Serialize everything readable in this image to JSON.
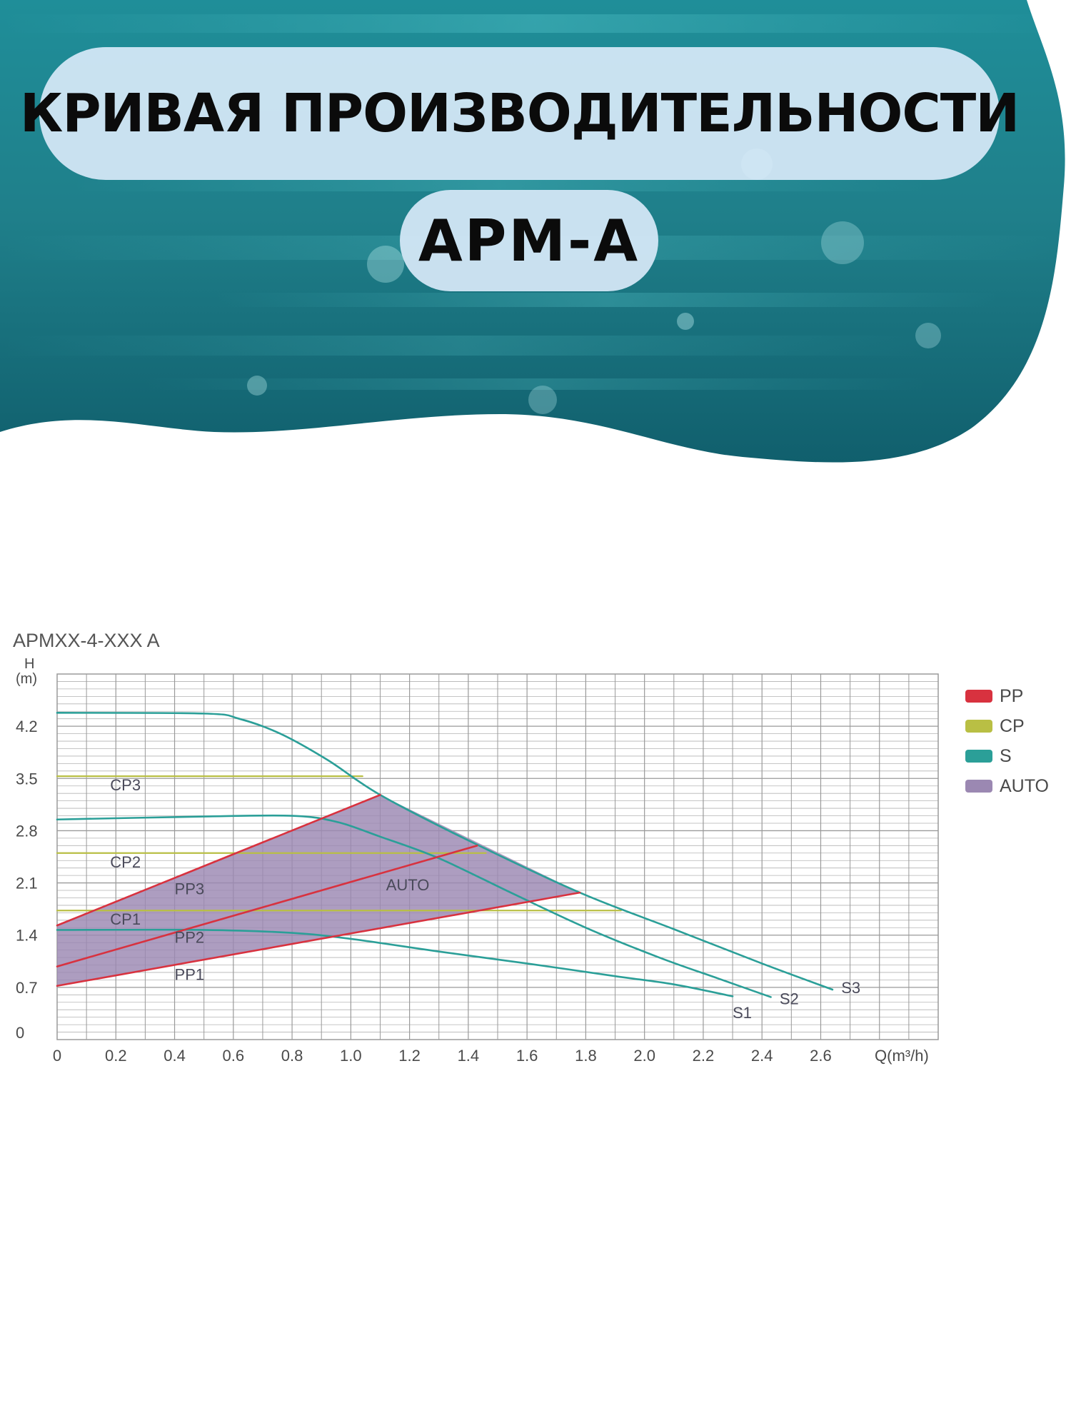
{
  "header": {
    "title": "КРИВАЯ ПРОИЗВОДИТЕЛЬНОСТИ",
    "model": "APM-A"
  },
  "colors": {
    "pp": "#d8323f",
    "cp": "#b9bf44",
    "s": "#2b9f98",
    "auto": "#9b88b2",
    "grid": "#9a9a9a"
  },
  "chart_data": {
    "type": "line",
    "title": "APMXX-4-XXX A",
    "ylabel_top": "H",
    "ylabel_unit": "(m)",
    "xlabel": "Q(m³/h)",
    "xlim": [
      0,
      3.0
    ],
    "ylim": [
      0,
      4.9
    ],
    "x_ticks": [
      "0",
      "0.2",
      "0.4",
      "0.6",
      "0.8",
      "1.0",
      "1.2",
      "1.4",
      "1.6",
      "1.8",
      "2.0",
      "2.2",
      "2.4",
      "2.6"
    ],
    "y_ticks": [
      "0",
      "0.7",
      "1.4",
      "2.1",
      "2.8",
      "3.5",
      "4.2"
    ],
    "legend": [
      {
        "label": "PP",
        "color": "#d8323f"
      },
      {
        "label": "CP",
        "color": "#b9bf44"
      },
      {
        "label": "S",
        "color": "#2b9f98"
      },
      {
        "label": "AUTO",
        "color": "#9b88b2"
      }
    ],
    "legend_position": "right",
    "auto_region": {
      "label": "AUTO",
      "points": [
        [
          0,
          1.53
        ],
        [
          1.1,
          3.28
        ],
        [
          1.78,
          1.97
        ],
        [
          0,
          0.72
        ]
      ]
    },
    "series": [
      {
        "name": "S3",
        "group": "S",
        "points": [
          [
            0,
            4.38
          ],
          [
            0.5,
            4.37
          ],
          [
            0.62,
            4.3
          ],
          [
            0.76,
            4.1
          ],
          [
            0.92,
            3.75
          ],
          [
            1.1,
            3.28
          ],
          [
            1.4,
            2.67
          ],
          [
            1.78,
            1.97
          ],
          [
            2.1,
            1.48
          ],
          [
            2.4,
            1.02
          ],
          [
            2.64,
            0.67
          ]
        ]
      },
      {
        "name": "S2",
        "group": "S",
        "points": [
          [
            0,
            2.95
          ],
          [
            0.5,
            2.99
          ],
          [
            0.8,
            3.0
          ],
          [
            0.95,
            2.92
          ],
          [
            1.1,
            2.72
          ],
          [
            1.3,
            2.43
          ],
          [
            1.55,
            1.96
          ],
          [
            1.8,
            1.5
          ],
          [
            2.05,
            1.1
          ],
          [
            2.25,
            0.82
          ],
          [
            2.43,
            0.57
          ]
        ]
      },
      {
        "name": "S1",
        "group": "S",
        "points": [
          [
            0,
            1.47
          ],
          [
            0.5,
            1.47
          ],
          [
            0.8,
            1.43
          ],
          [
            1.0,
            1.35
          ],
          [
            1.3,
            1.18
          ],
          [
            1.6,
            1.02
          ],
          [
            1.9,
            0.85
          ],
          [
            2.1,
            0.74
          ],
          [
            2.3,
            0.58
          ]
        ]
      },
      {
        "name": "PP3",
        "group": "PP",
        "points": [
          [
            0,
            1.53
          ],
          [
            1.1,
            3.28
          ]
        ]
      },
      {
        "name": "PP2",
        "group": "PP",
        "points": [
          [
            0,
            0.98
          ],
          [
            1.43,
            2.6
          ]
        ]
      },
      {
        "name": "PP1",
        "group": "PP",
        "points": [
          [
            0,
            0.72
          ],
          [
            1.78,
            1.97
          ]
        ]
      },
      {
        "name": "CP3",
        "group": "CP",
        "points": [
          [
            0,
            3.53
          ],
          [
            1.04,
            3.53
          ]
        ]
      },
      {
        "name": "CP2",
        "group": "CP",
        "points": [
          [
            0,
            2.5
          ],
          [
            1.46,
            2.5
          ]
        ]
      },
      {
        "name": "CP1",
        "group": "CP",
        "points": [
          [
            0,
            1.73
          ],
          [
            1.92,
            1.73
          ]
        ]
      }
    ]
  }
}
